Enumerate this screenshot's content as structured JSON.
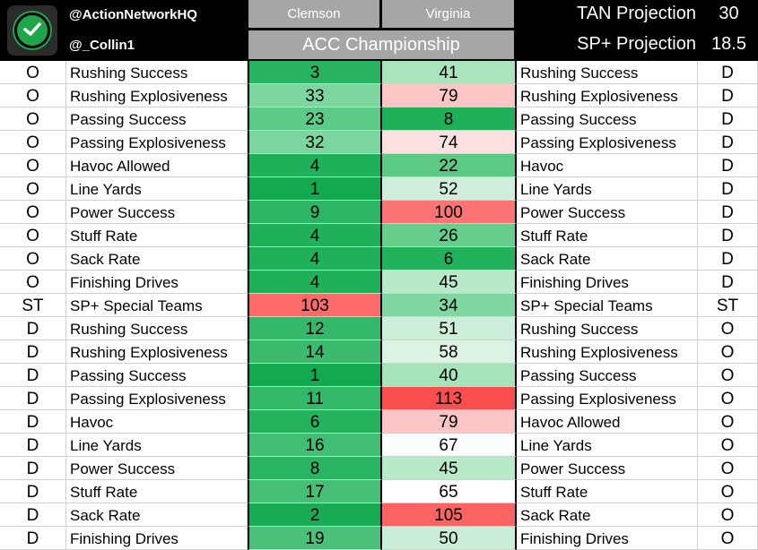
{
  "header": {
    "handle_top": "@ActionNetworkHQ",
    "handle_bottom": "@_Collin1",
    "team_a": "Clemson",
    "team_b": "Virginia",
    "title": "ACC Championship",
    "projections": [
      {
        "label": "TAN Projection",
        "value": "30"
      },
      {
        "label": "SP+ Projection",
        "value": "18.5"
      }
    ]
  },
  "rows": [
    {
      "side_a": "O",
      "label_a": "Rushing Success",
      "val_a": "3",
      "color_a": "#27b35f",
      "val_b": "41",
      "color_b": "#a9e4bd",
      "label_b": "Rushing Success",
      "side_b": "D"
    },
    {
      "side_a": "O",
      "label_a": "Rushing Explosiveness",
      "val_a": "33",
      "color_a": "#7dd6a0",
      "val_b": "79",
      "color_b": "#fdc6c6",
      "label_b": "Rushing Explosiveness",
      "side_b": "D"
    },
    {
      "side_a": "O",
      "label_a": "Passing Success",
      "val_a": "23",
      "color_a": "#5ccb87",
      "val_b": "8",
      "color_b": "#1fb059",
      "label_b": "Passing Success",
      "side_b": "D"
    },
    {
      "side_a": "O",
      "label_a": "Passing Explosiveness",
      "val_a": "32",
      "color_a": "#7bd59e",
      "val_b": "74",
      "color_b": "#fde0e0",
      "label_b": "Passing Explosiveness",
      "side_b": "D"
    },
    {
      "side_a": "O",
      "label_a": "Havoc Allowed",
      "val_a": "4",
      "color_a": "#1fb059",
      "val_b": "22",
      "color_b": "#5cc985",
      "label_b": "Havoc",
      "side_b": "D"
    },
    {
      "side_a": "O",
      "label_a": "Line Yards",
      "val_a": "1",
      "color_a": "#13a94f",
      "val_b": "52",
      "color_b": "#cfeedb",
      "label_b": "Line Yards",
      "side_b": "D"
    },
    {
      "side_a": "O",
      "label_a": "Power Success",
      "val_a": "9",
      "color_a": "#2cb564",
      "val_b": "100",
      "color_b": "#fc7474",
      "label_b": "Power Success",
      "side_b": "D"
    },
    {
      "side_a": "O",
      "label_a": "Stuff Rate",
      "val_a": "4",
      "color_a": "#1fb059",
      "val_b": "26",
      "color_b": "#66cd8c",
      "label_b": "Stuff Rate",
      "side_b": "D"
    },
    {
      "side_a": "O",
      "label_a": "Sack Rate",
      "val_a": "4",
      "color_a": "#1fb059",
      "val_b": "6",
      "color_b": "#22b25b",
      "label_b": "Sack Rate",
      "side_b": "D"
    },
    {
      "side_a": "O",
      "label_a": "Finishing Drives",
      "val_a": "4",
      "color_a": "#1fb059",
      "val_b": "45",
      "color_b": "#b8e9c9",
      "label_b": "Finishing Drives",
      "side_b": "D"
    },
    {
      "side_a": "ST",
      "label_a": "SP+ Special Teams",
      "val_a": "103",
      "color_a": "#fc6a6a",
      "val_b": "34",
      "color_b": "#80d7a1",
      "label_b": "SP+ Special Teams",
      "side_b": "ST"
    },
    {
      "side_a": "D",
      "label_a": "Rushing Success",
      "val_a": "12",
      "color_a": "#36b86a",
      "val_b": "51",
      "color_b": "#cdeed9",
      "label_b": "Rushing Success",
      "side_b": "O"
    },
    {
      "side_a": "D",
      "label_a": "Rushing Explosiveness",
      "val_a": "14",
      "color_a": "#3cbb6f",
      "val_b": "58",
      "color_b": "#dcf3e4",
      "label_b": "Rushing Explosiveness",
      "side_b": "O"
    },
    {
      "side_a": "D",
      "label_a": "Passing Success",
      "val_a": "1",
      "color_a": "#13a94f",
      "val_b": "40",
      "color_b": "#a6e3bb",
      "label_b": "Passing Success",
      "side_b": "O"
    },
    {
      "side_a": "D",
      "label_a": "Passing Explosiveness",
      "val_a": "11",
      "color_a": "#33b768",
      "val_b": "113",
      "color_b": "#fb4f4f",
      "label_b": "Passing Explosiveness",
      "side_b": "O"
    },
    {
      "side_a": "D",
      "label_a": "Havoc",
      "val_a": "6",
      "color_a": "#24b25d",
      "val_b": "79",
      "color_b": "#fdc6c6",
      "label_b": "Havoc Allowed",
      "side_b": "O"
    },
    {
      "side_a": "D",
      "label_a": "Line Yards",
      "val_a": "16",
      "color_a": "#42bd74",
      "val_b": "67",
      "color_b": "#fbfdfc",
      "label_b": "Line Yards",
      "side_b": "O"
    },
    {
      "side_a": "D",
      "label_a": "Power Success",
      "val_a": "8",
      "color_a": "#29b462",
      "val_b": "45",
      "color_b": "#b8e9c9",
      "label_b": "Power Success",
      "side_b": "O"
    },
    {
      "side_a": "D",
      "label_a": "Stuff Rate",
      "val_a": "17",
      "color_a": "#45be76",
      "val_b": "65",
      "color_b": "#ffffff",
      "label_b": "Stuff Rate",
      "side_b": "O"
    },
    {
      "side_a": "D",
      "label_a": "Sack Rate",
      "val_a": "2",
      "color_a": "#18ab53",
      "val_b": "105",
      "color_b": "#fc6464",
      "label_b": "Sack Rate",
      "side_b": "O"
    },
    {
      "side_a": "D",
      "label_a": "Finishing Drives",
      "val_a": "19",
      "color_a": "#4bc07b",
      "val_b": "50",
      "color_b": "#c9edd6",
      "label_b": "Finishing Drives",
      "side_b": "O"
    }
  ]
}
